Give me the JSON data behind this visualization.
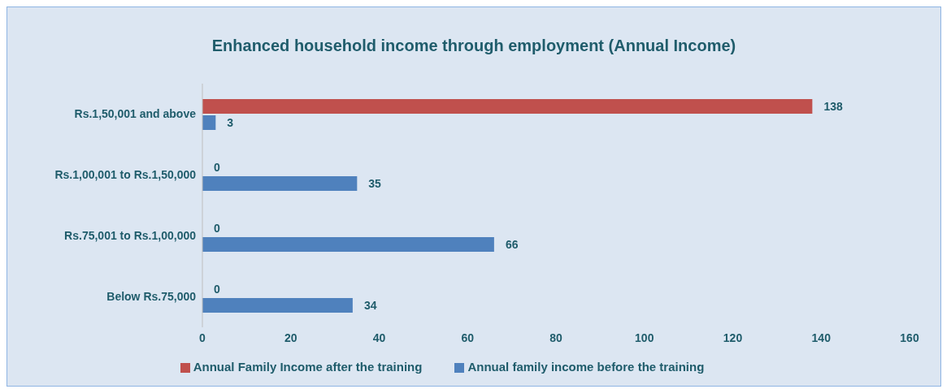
{
  "chart_data": {
    "type": "bar",
    "orientation": "horizontal",
    "title": "Enhanced household income through employment (Annual Income)",
    "categories": [
      "Rs.1,50,001 and above",
      "Rs.1,00,001 to Rs.1,50,000",
      "Rs.75,001 to Rs.1,00,000",
      "Below Rs.75,000"
    ],
    "series": [
      {
        "name": "Annual Family Income after the training",
        "color": "#c0504d",
        "values": [
          138,
          0,
          0,
          0
        ]
      },
      {
        "name": "Annual family income before the training",
        "color": "#4f81bd",
        "values": [
          3,
          35,
          66,
          34
        ]
      }
    ],
    "xlim": [
      0,
      160
    ],
    "xticks": [
      0,
      20,
      40,
      60,
      80,
      100,
      120,
      140,
      160
    ],
    "data_labels": true,
    "grid": false,
    "legend": "bottom"
  }
}
